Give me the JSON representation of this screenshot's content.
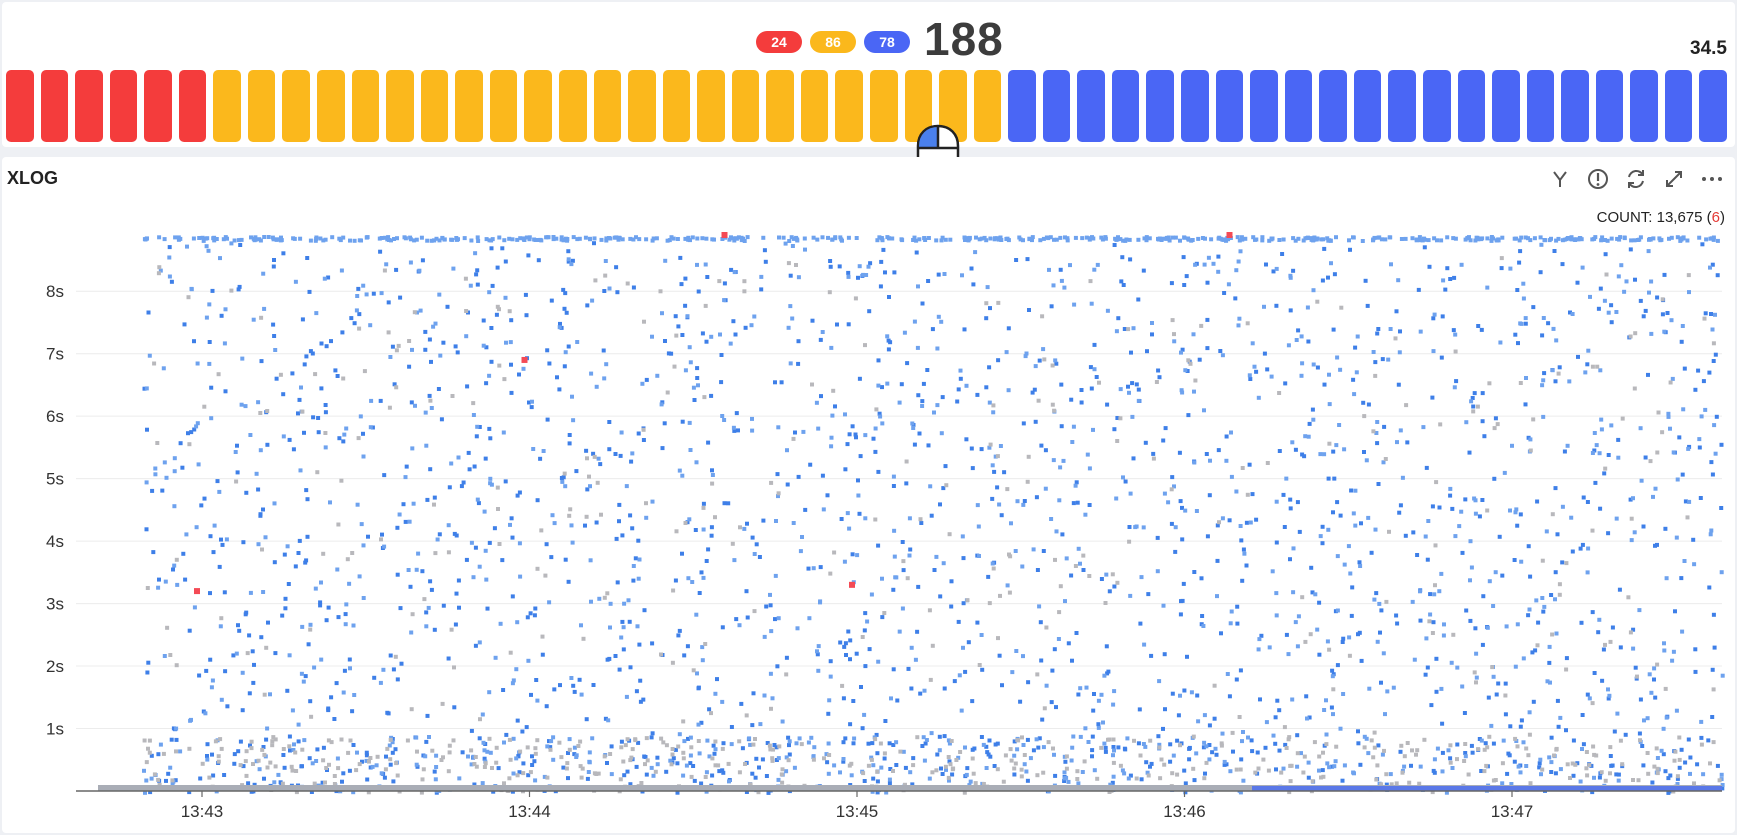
{
  "summary": {
    "error_count": "24",
    "warning_count": "86",
    "normal_count": "78",
    "total": "188",
    "tps": "34.5"
  },
  "colors": {
    "error": "#f43c3c",
    "warning": "#fbb81c",
    "normal": "#4a66f5",
    "point_blue": "#3e7fe8",
    "point_light": "#6ea2ee",
    "point_gray": "#b8b8bc",
    "point_error": "#f44a55"
  },
  "bar_strip": {
    "red_bars": 6,
    "yellow_bars": 23,
    "blue_bars": 21
  },
  "xlog": {
    "title": "XLOG",
    "count_label": "COUNT: 13,675 (",
    "error_count": "6",
    "count_suffix": ")",
    "toolbar_icons": [
      "filter-icon",
      "alert-icon",
      "refresh-icon",
      "expand-icon",
      "more-icon"
    ]
  },
  "chart_data": {
    "type": "scatter",
    "title": "",
    "xlabel": "",
    "ylabel": "",
    "x_ticks": [
      "13:43",
      "13:44",
      "13:45",
      "13:46",
      "13:47"
    ],
    "y_ticks": [
      "1s",
      "2s",
      "3s",
      "4s",
      "5s",
      "6s",
      "7s",
      "8s"
    ],
    "ylim": [
      0,
      8.9
    ],
    "series": [
      {
        "color_key": "point_blue",
        "density": 1400
      },
      {
        "color_key": "point_light",
        "density": 1100
      },
      {
        "color_key": "point_gray",
        "density": 700
      }
    ],
    "error_points": [
      {
        "x": "13:43",
        "y": 3.2
      },
      {
        "x": "13:44",
        "y": 6.9
      },
      {
        "x": "13:44",
        "y": 8.9
      },
      {
        "x": "13:45",
        "y": 3.3
      },
      {
        "x": "13:46",
        "y": 8.9
      }
    ],
    "grid": "horizontal"
  }
}
